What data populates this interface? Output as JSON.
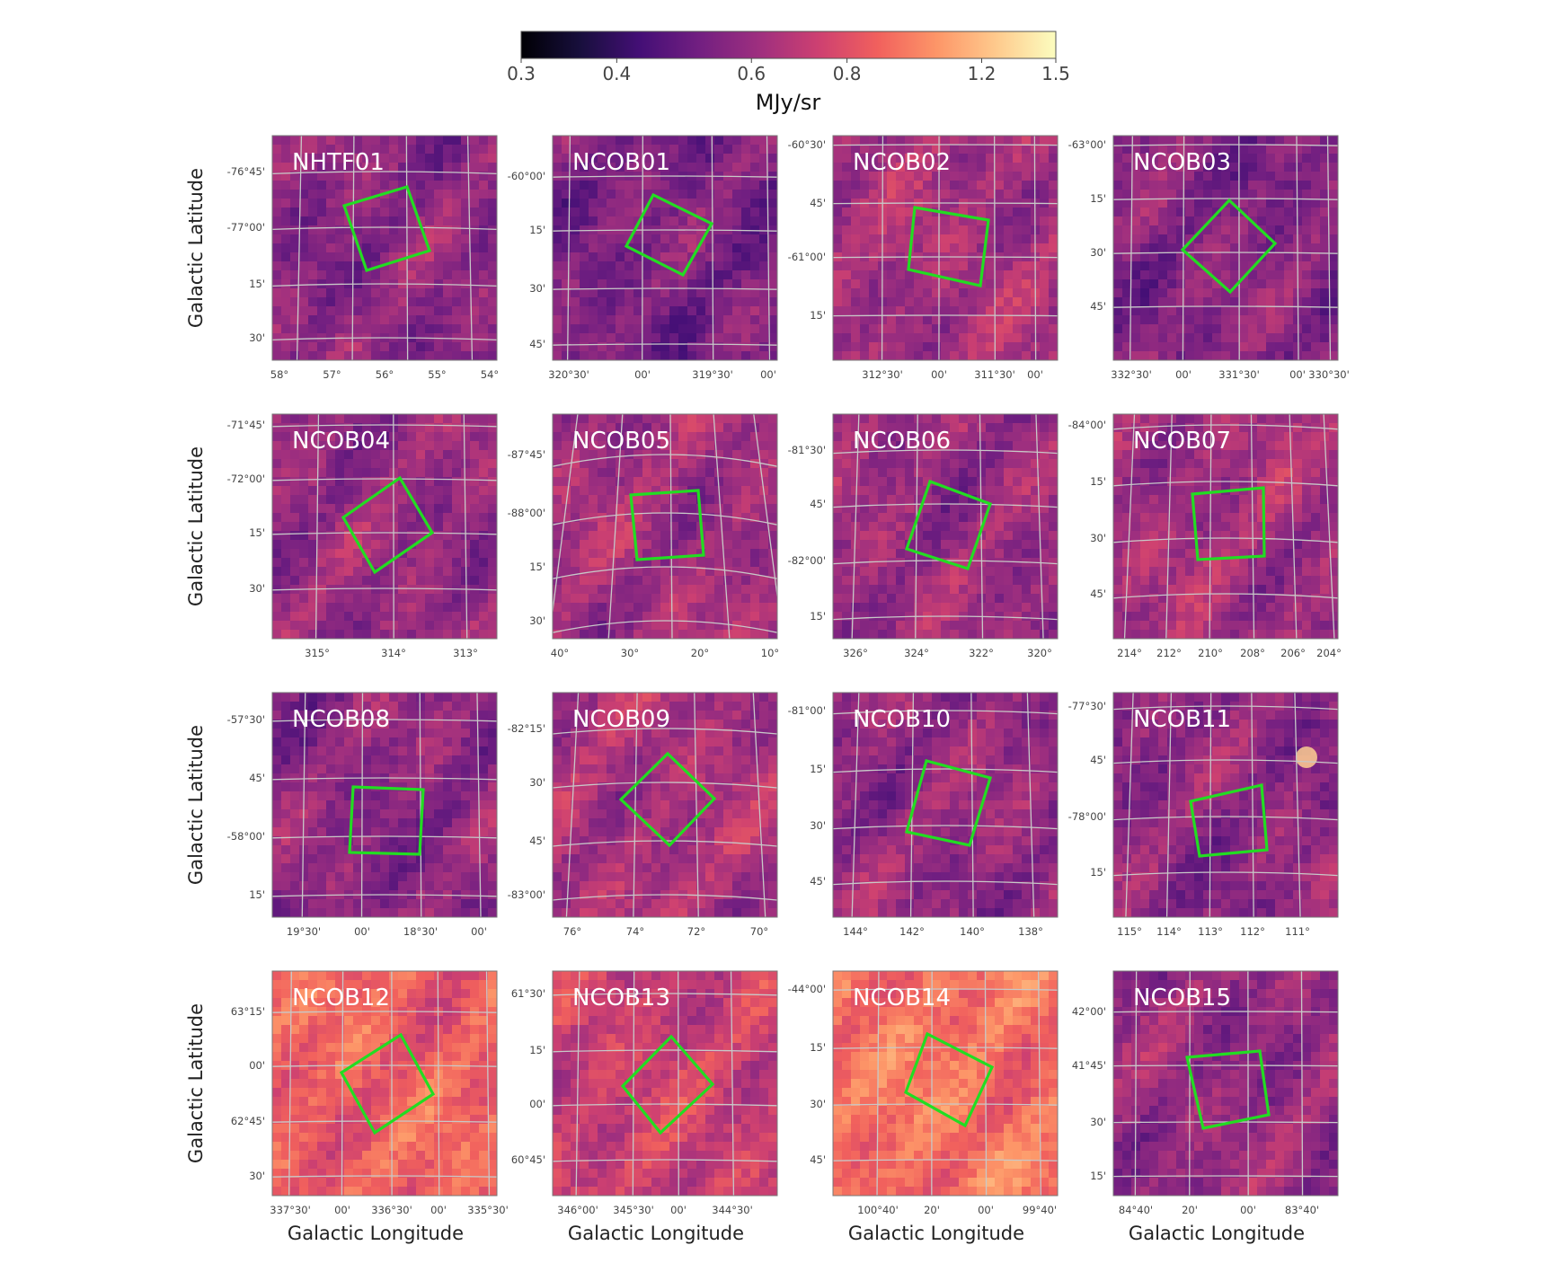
{
  "colorbar": {
    "unit_label": "MJy/sr",
    "ticks": [
      {
        "label": "0.3",
        "value": 0.3
      },
      {
        "label": "0.4",
        "value": 0.4
      },
      {
        "label": "0.6",
        "value": 0.6
      },
      {
        "label": "0.8",
        "value": 0.8
      },
      {
        "label": "1.2",
        "value": 1.2
      },
      {
        "label": "1.5",
        "value": 1.5
      }
    ],
    "range": [
      0.3,
      1.5
    ],
    "scale": "log",
    "colormap": [
      "#000004",
      "#180f3d",
      "#440f76",
      "#721f81",
      "#9e2f7f",
      "#cd4071",
      "#f1605d",
      "#fd9668",
      "#feca8d",
      "#fcfdbf"
    ]
  },
  "axes_labels": {
    "ylabel": "Galactic Latitude",
    "xlabel": "Galactic Longitude"
  },
  "colors": {
    "footprint": "#22dd22",
    "grid": "#c8c8c8",
    "panel_label": "#ffffff"
  },
  "panels": [
    {
      "name": "NHTF01",
      "yticks": [
        "-76°45'",
        "-77°00'",
        "15'",
        "30'"
      ],
      "xticks": [
        "58°",
        "57°",
        "56°",
        "55°",
        "54°"
      ],
      "tone": 0.4
    },
    {
      "name": "NCOB01",
      "yticks": [
        "-60°00'",
        "15'",
        "30'",
        "45'"
      ],
      "xticks": [
        "320°30'",
        "00'",
        "319°30'",
        "00'"
      ],
      "tone": 0.36
    },
    {
      "name": "NCOB02",
      "yticks": [
        "-60°30'",
        "45'",
        "-61°00'",
        "15'"
      ],
      "xticks": [
        "312°30'",
        "00'",
        "311°30'",
        "00'"
      ],
      "tone": 0.46
    },
    {
      "name": "NCOB03",
      "yticks": [
        "-63°00'",
        "15'",
        "30'",
        "45'"
      ],
      "xticks": [
        "332°30'",
        "00'",
        "331°30'",
        "00'",
        "330°30'"
      ],
      "tone": 0.38
    },
    {
      "name": "NCOB04",
      "yticks": [
        "-71°45'",
        "-72°00'",
        "15'",
        "30'"
      ],
      "xticks": [
        "315°",
        "314°",
        "313°"
      ],
      "tone": 0.42
    },
    {
      "name": "NCOB05",
      "yticks": [
        "-87°45'",
        "-88°00'",
        "15'",
        "30'"
      ],
      "xticks": [
        "40°",
        "30°",
        "20°",
        "10°"
      ],
      "tone": 0.45
    },
    {
      "name": "NCOB06",
      "yticks": [
        "-81°30'",
        "45'",
        "-82°00'",
        "15'"
      ],
      "xticks": [
        "326°",
        "324°",
        "322°",
        "320°"
      ],
      "tone": 0.43
    },
    {
      "name": "NCOB07",
      "yticks": [
        "-84°00'",
        "15'",
        "30'",
        "45'"
      ],
      "xticks": [
        "214°",
        "212°",
        "210°",
        "208°",
        "206°",
        "204°"
      ],
      "tone": 0.45
    },
    {
      "name": "NCOB08",
      "yticks": [
        "-57°30'",
        "45'",
        "-58°00'",
        "15'"
      ],
      "xticks": [
        "19°30'",
        "00'",
        "18°30'",
        "00'"
      ],
      "tone": 0.4
    },
    {
      "name": "NCOB09",
      "yticks": [
        "-82°15'",
        "30'",
        "45'",
        "-83°00'"
      ],
      "xticks": [
        "76°",
        "74°",
        "72°",
        "70°"
      ],
      "tone": 0.47
    },
    {
      "name": "NCOB10",
      "yticks": [
        "-81°00'",
        "15'",
        "30'",
        "45'"
      ],
      "xticks": [
        "144°",
        "142°",
        "140°",
        "138°"
      ],
      "tone": 0.42
    },
    {
      "name": "NCOB11",
      "yticks": [
        "-77°30'",
        "45'",
        "-78°00'",
        "15'"
      ],
      "xticks": [
        "115°",
        "114°",
        "113°",
        "112°",
        "111°"
      ],
      "tone": 0.4
    },
    {
      "name": "NCOB12",
      "yticks": [
        "63°15'",
        "00'",
        "62°45'",
        "30'"
      ],
      "xticks": [
        "337°30'",
        "00'",
        "336°30'",
        "00'",
        "335°30'"
      ],
      "tone": 0.66
    },
    {
      "name": "NCOB13",
      "yticks": [
        "61°30'",
        "15'",
        "00'",
        "60°45'"
      ],
      "xticks": [
        "346°00'",
        "345°30'",
        "00'",
        "344°30'"
      ],
      "tone": 0.55
    },
    {
      "name": "NCOB14",
      "yticks": [
        "-44°00'",
        "15'",
        "30'",
        "45'"
      ],
      "xticks": [
        "100°40'",
        "20'",
        "00'",
        "99°40'"
      ],
      "tone": 0.7
    },
    {
      "name": "NCOB15",
      "yticks": [
        "42°00'",
        "41°45'",
        "30'",
        "15'"
      ],
      "xticks": [
        "84°40'",
        "20'",
        "00'",
        "83°40'"
      ],
      "tone": 0.42
    }
  ]
}
